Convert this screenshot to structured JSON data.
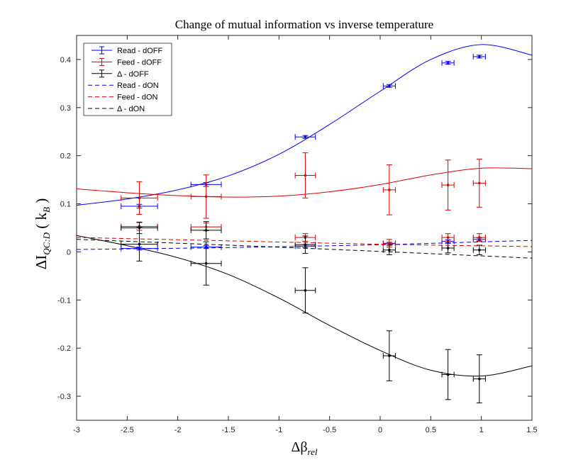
{
  "chart_data": {
    "type": "scatter",
    "title": "Change of mutual information vs inverse temperature",
    "xlabel": "Δβ_rel",
    "ylabel": "ΔI_QC:D ( k_B )",
    "xlim": [
      -3,
      1.5
    ],
    "ylim": [
      -0.35,
      0.45
    ],
    "xticks": [
      -3,
      -2.5,
      -2,
      -1.5,
      -1,
      -0.5,
      0,
      0.5,
      1,
      1.5
    ],
    "xtick_labels": [
      "-3",
      "-2.5",
      "-2",
      "-1.5",
      "-1",
      "-0.5",
      "0",
      "0.5",
      "1",
      "1.5"
    ],
    "yticks": [
      -0.3,
      -0.2,
      -0.1,
      0,
      0.1,
      0.2,
      0.3,
      0.4
    ],
    "ytick_labels": [
      "-0.3",
      "-0.2",
      "-0.1",
      "0",
      "0.1",
      "0.2",
      "0.3",
      "0.4"
    ],
    "grid": false,
    "legend_position": "top-left",
    "legend": [
      "Read - dOFF",
      "Feed - dOFF",
      "Δ - dOFF",
      "Read - dON",
      "Feed - dON",
      "Δ - dON"
    ],
    "colors": {
      "read": "#0000ff",
      "feed": "#dd0000",
      "delta": "#000000"
    },
    "series": [
      {
        "name": "Read - dOFF",
        "kind": "errorbar",
        "color": "#0000ff",
        "x": [
          -2.38,
          -1.72,
          -0.74,
          0.09,
          0.67,
          0.98
        ],
        "y": [
          0.095,
          0.14,
          0.239,
          0.345,
          0.393,
          0.406
        ],
        "xerr": [
          0.18,
          0.15,
          0.1,
          0.06,
          0.06,
          0.06
        ],
        "yerr": [
          0.004,
          0.004,
          0.003,
          0.003,
          0.003,
          0.003
        ]
      },
      {
        "name": "Feed - dOFF",
        "kind": "errorbar",
        "color": "#dd0000",
        "x": [
          -2.38,
          -1.72,
          -0.74,
          0.09,
          0.67,
          0.98
        ],
        "y": [
          0.112,
          0.115,
          0.159,
          0.129,
          0.139,
          0.143
        ],
        "xerr": [
          0.18,
          0.15,
          0.1,
          0.06,
          0.06,
          0.06
        ],
        "yerr": [
          0.034,
          0.045,
          0.047,
          0.052,
          0.052,
          0.05
        ]
      },
      {
        "name": "Δ - dOFF",
        "kind": "errorbar",
        "color": "#000000",
        "x": [
          -2.38,
          -1.72,
          -0.74,
          0.09,
          0.67,
          0.98
        ],
        "y": [
          0.016,
          -0.024,
          -0.08,
          -0.216,
          -0.255,
          -0.264
        ],
        "xerr": [
          0.18,
          0.15,
          0.1,
          0.06,
          0.06,
          0.06
        ],
        "yerr": [
          0.035,
          0.045,
          0.047,
          0.052,
          0.052,
          0.05
        ]
      },
      {
        "name": "Read - dON",
        "kind": "errorbar",
        "color": "#0000ff",
        "x": [
          -2.38,
          -1.72,
          -0.74,
          0.09,
          0.67,
          0.98
        ],
        "y": [
          0.007,
          0.01,
          0.012,
          0.017,
          0.022,
          0.026
        ],
        "xerr": [
          0.18,
          0.15,
          0.1,
          0.06,
          0.06,
          0.06
        ],
        "yerr": [
          0.003,
          0.003,
          0.003,
          0.003,
          0.003,
          0.003
        ]
      },
      {
        "name": "Feed - dON",
        "kind": "errorbar",
        "color": "#dd0000",
        "x": [
          -2.38,
          -1.72,
          -0.74,
          0.09,
          0.67,
          0.98
        ],
        "y": [
          0.053,
          0.052,
          0.03,
          0.018,
          0.03,
          0.03
        ],
        "xerr": [
          0.18,
          0.15,
          0.1,
          0.06,
          0.06,
          0.06
        ],
        "yerr": [
          0.008,
          0.008,
          0.008,
          0.008,
          0.008,
          0.008
        ]
      },
      {
        "name": "Δ - dON",
        "kind": "errorbar",
        "color": "#000000",
        "x": [
          -2.38,
          -1.72,
          -0.74,
          0.09,
          0.67,
          0.98
        ],
        "y": [
          0.05,
          0.045,
          0.015,
          0.004,
          0.008,
          0.004
        ],
        "xerr": [
          0.18,
          0.15,
          0.1,
          0.06,
          0.06,
          0.06
        ],
        "yerr": [
          0.012,
          0.018,
          0.018,
          0.01,
          0.01,
          0.01
        ]
      },
      {
        "name": "Read fit (dOFF)",
        "kind": "line",
        "dash": false,
        "color": "#0000ff",
        "x": [
          -3,
          -2.5,
          -2,
          -1.5,
          -1,
          -0.5,
          0,
          0.5,
          1,
          1.5
        ],
        "y": [
          0.097,
          0.11,
          0.129,
          0.158,
          0.203,
          0.265,
          0.334,
          0.4,
          0.431,
          0.409
        ]
      },
      {
        "name": "Feed fit (dOFF)",
        "kind": "line",
        "dash": false,
        "color": "#dd0000",
        "x": [
          -3,
          -2.5,
          -2,
          -1.5,
          -1,
          -0.5,
          0,
          0.5,
          1,
          1.5
        ],
        "y": [
          0.131,
          0.123,
          0.117,
          0.114,
          0.116,
          0.125,
          0.14,
          0.16,
          0.174,
          0.173
        ]
      },
      {
        "name": "Δ fit (dOFF)",
        "kind": "line",
        "dash": false,
        "color": "#000000",
        "x": [
          -3,
          -2.5,
          -2,
          -1.5,
          -1,
          -0.5,
          0,
          0.5,
          1,
          1.5
        ],
        "y": [
          0.034,
          0.013,
          -0.012,
          -0.047,
          -0.096,
          -0.153,
          -0.205,
          -0.246,
          -0.258,
          -0.237
        ]
      },
      {
        "name": "Read - dON",
        "kind": "line",
        "dash": true,
        "color": "#0000ff",
        "x": [
          -3,
          -1.5,
          0,
          1.5
        ],
        "y": [
          0.005,
          0.009,
          0.015,
          0.024
        ]
      },
      {
        "name": "Feed - dON",
        "kind": "line",
        "dash": true,
        "color": "#dd0000",
        "x": [
          -3,
          -1.5,
          0,
          1.5
        ],
        "y": [
          0.03,
          0.023,
          0.016,
          0.011
        ]
      },
      {
        "name": "Δ - dON",
        "kind": "line",
        "dash": true,
        "color": "#000000",
        "x": [
          -3,
          -1.5,
          0,
          1.5
        ],
        "y": [
          0.026,
          0.014,
          0.001,
          -0.013
        ]
      }
    ]
  }
}
